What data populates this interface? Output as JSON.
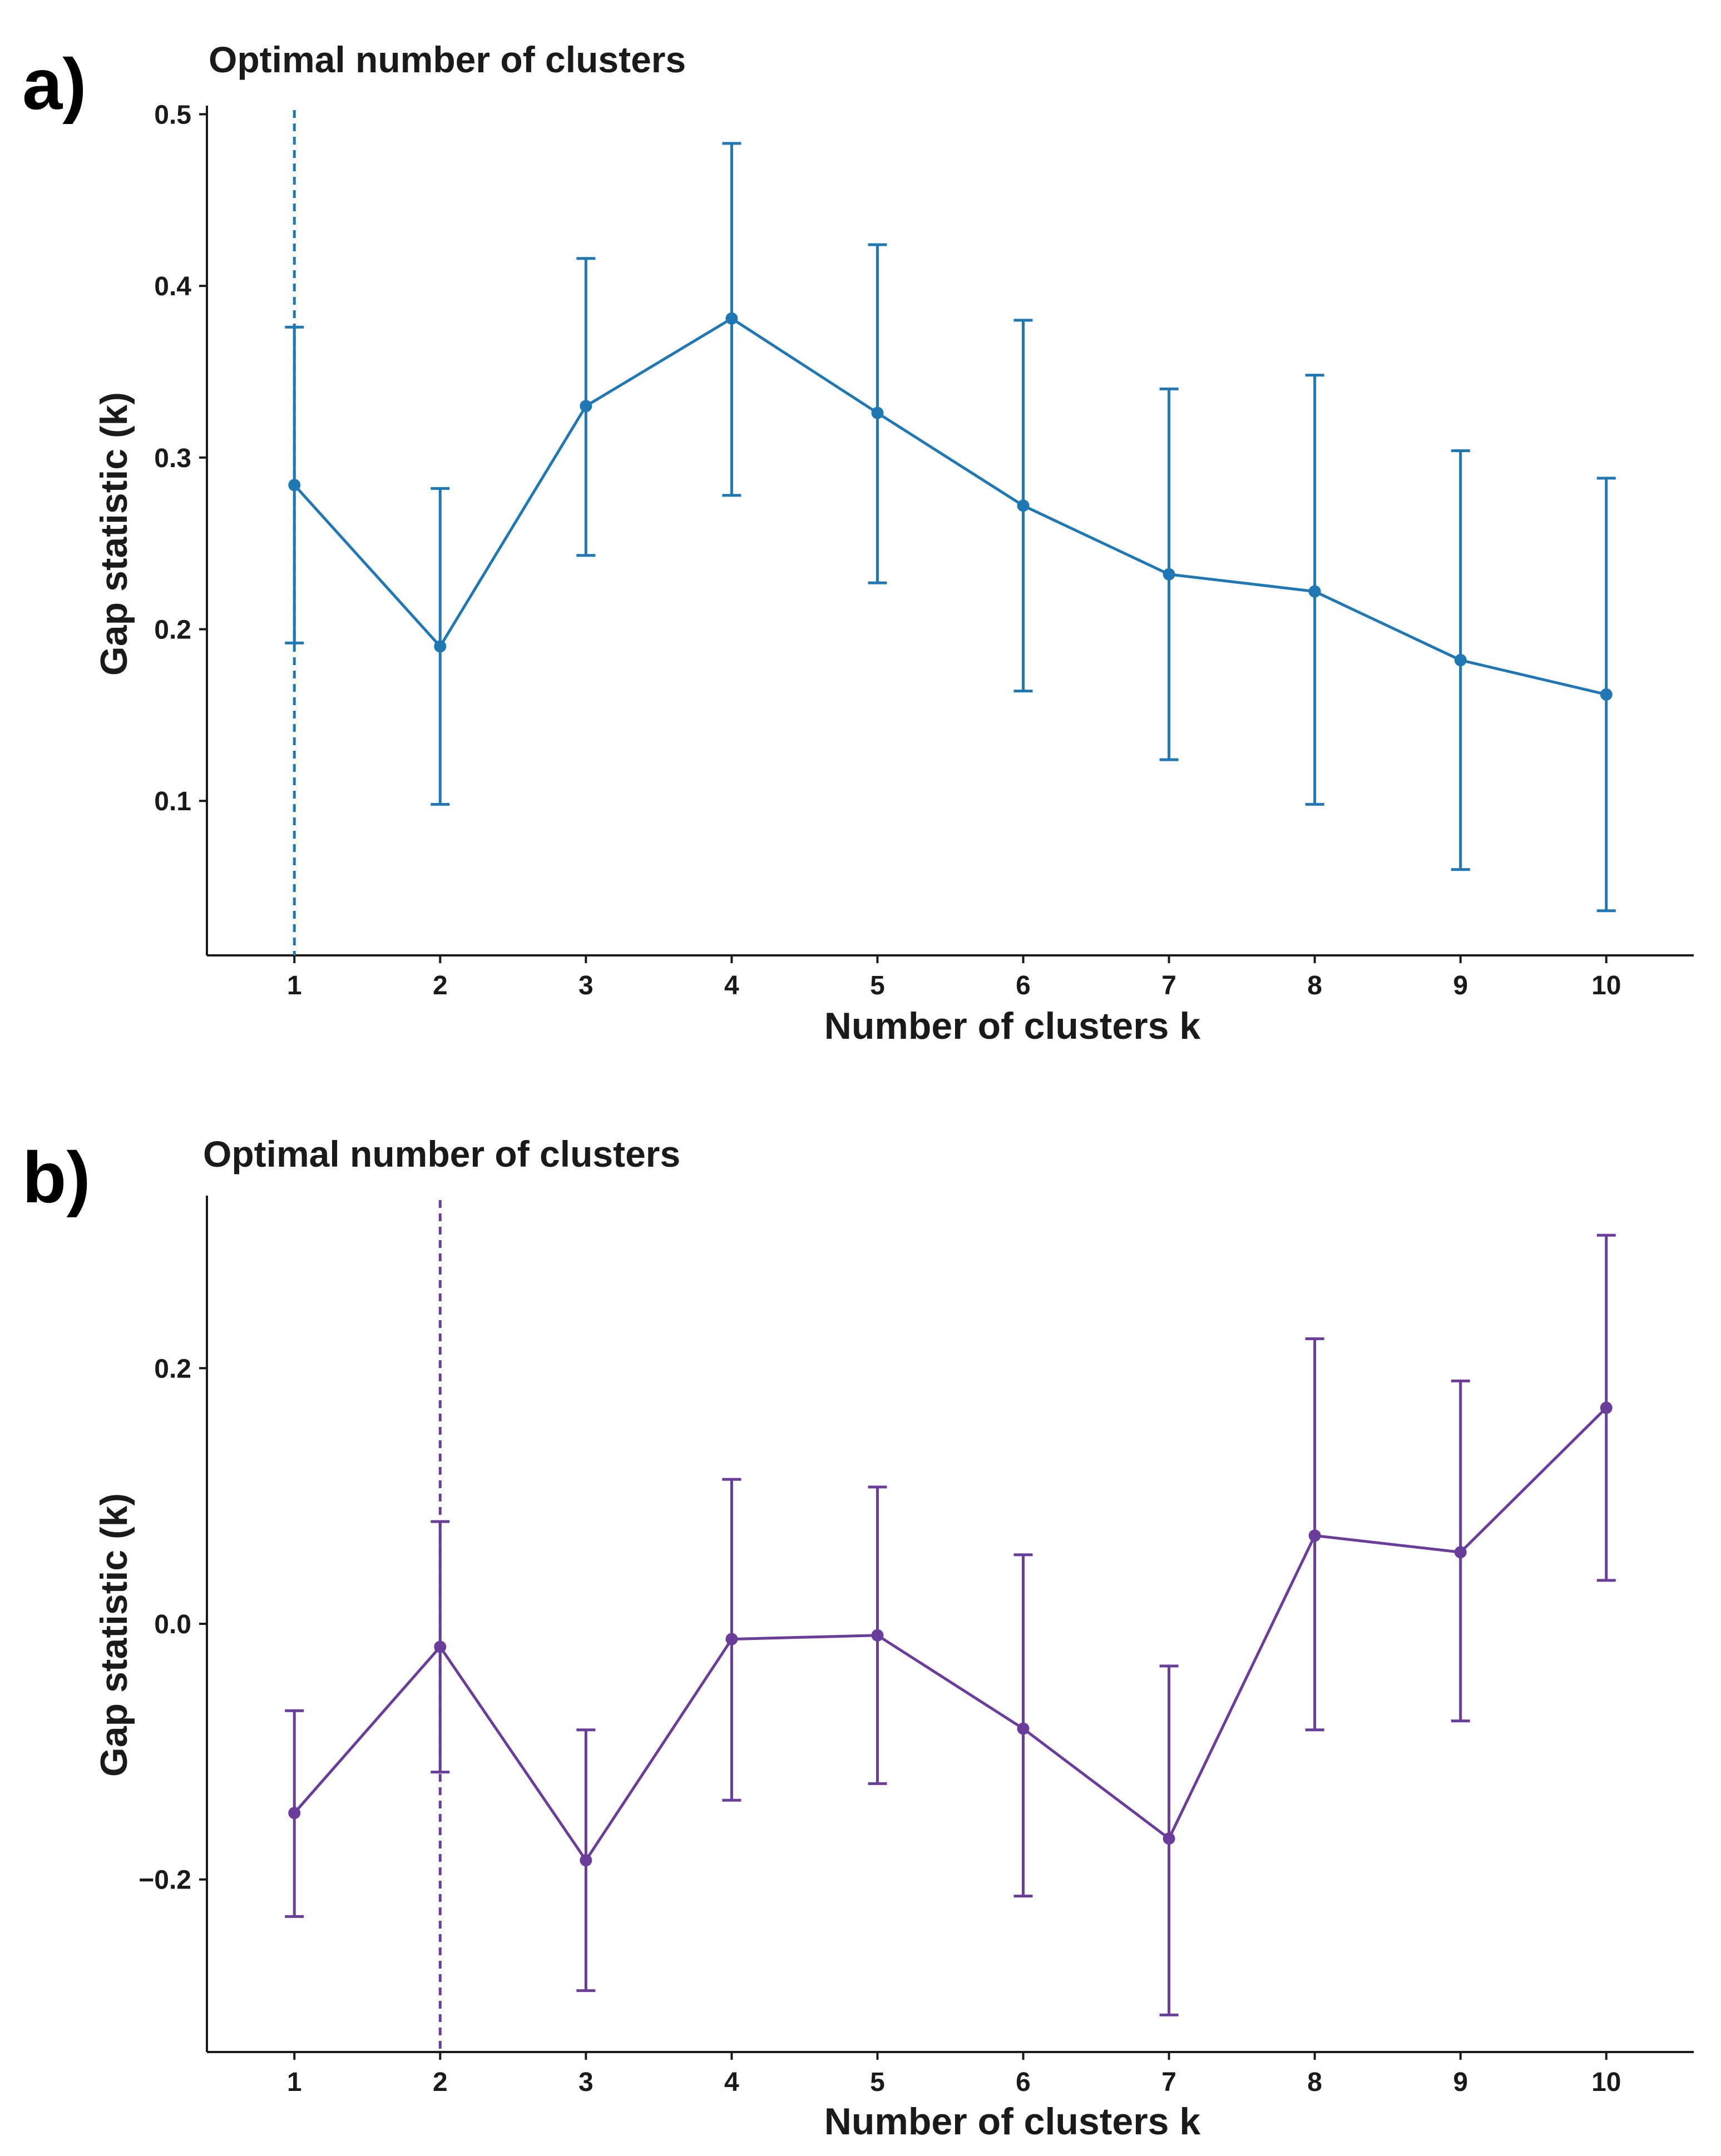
{
  "panels": [
    {
      "letter": "a)",
      "color": "#1f77b4",
      "chart_data": {
        "type": "line",
        "title": "Optimal number of clusters",
        "xlabel": "Number of clusters k",
        "ylabel": "Gap statistic (k)",
        "x": [
          1,
          2,
          3,
          4,
          5,
          6,
          7,
          8,
          9,
          10
        ],
        "series": [
          {
            "values": [
              0.284,
              0.19,
              0.33,
              0.381,
              0.326,
              0.272,
              0.232,
              0.222,
              0.182,
              0.162
            ],
            "err_low": [
              0.192,
              0.098,
              0.243,
              0.278,
              0.227,
              0.164,
              0.124,
              0.098,
              0.06,
              0.036
            ],
            "err_high": [
              0.376,
              0.282,
              0.416,
              0.483,
              0.424,
              0.38,
              0.34,
              0.348,
              0.304,
              0.288
            ]
          }
        ],
        "optimal_k": 1,
        "xlim": [
          0.4,
          10.6
        ],
        "ylim": [
          0.01,
          0.505
        ],
        "yticks": [
          0.1,
          0.2,
          0.3,
          0.4,
          0.5
        ],
        "ytick_labels": [
          "0.1",
          "0.2",
          "0.3",
          "0.4",
          "0.5"
        ],
        "xticks": [
          1,
          2,
          3,
          4,
          5,
          6,
          7,
          8,
          9,
          10
        ],
        "xtick_labels": [
          "1",
          "2",
          "3",
          "4",
          "5",
          "6",
          "7",
          "8",
          "9",
          "10"
        ],
        "grid": false
      }
    },
    {
      "letter": "b)",
      "color": "#6a3d9a",
      "chart_data": {
        "type": "line",
        "title": "Optimal number of clusters",
        "xlabel": "Number of clusters k",
        "ylabel": "Gap statistic (k)",
        "x": [
          1,
          2,
          3,
          4,
          5,
          6,
          7,
          8,
          9,
          10
        ],
        "series": [
          {
            "values": [
              -0.148,
              -0.018,
              -0.185,
              -0.012,
              -0.009,
              -0.082,
              -0.168,
              0.069,
              0.056,
              0.169
            ],
            "err_low": [
              -0.229,
              -0.116,
              -0.287,
              -0.138,
              -0.125,
              -0.213,
              -0.306,
              -0.083,
              -0.076,
              0.034
            ],
            "err_high": [
              -0.068,
              0.08,
              -0.083,
              0.113,
              0.107,
              0.054,
              -0.033,
              0.223,
              0.19,
              0.304
            ]
          }
        ],
        "optimal_k": 2,
        "xlim": [
          0.4,
          10.6
        ],
        "ylim": [
          -0.335,
          0.335
        ],
        "yticks": [
          -0.2,
          0.0,
          0.2
        ],
        "ytick_labels": [
          "−0.2",
          "0.0",
          "0.2"
        ],
        "xticks": [
          1,
          2,
          3,
          4,
          5,
          6,
          7,
          8,
          9,
          10
        ],
        "xtick_labels": [
          "1",
          "2",
          "3",
          "4",
          "5",
          "6",
          "7",
          "8",
          "9",
          "10"
        ],
        "grid": false
      }
    }
  ]
}
